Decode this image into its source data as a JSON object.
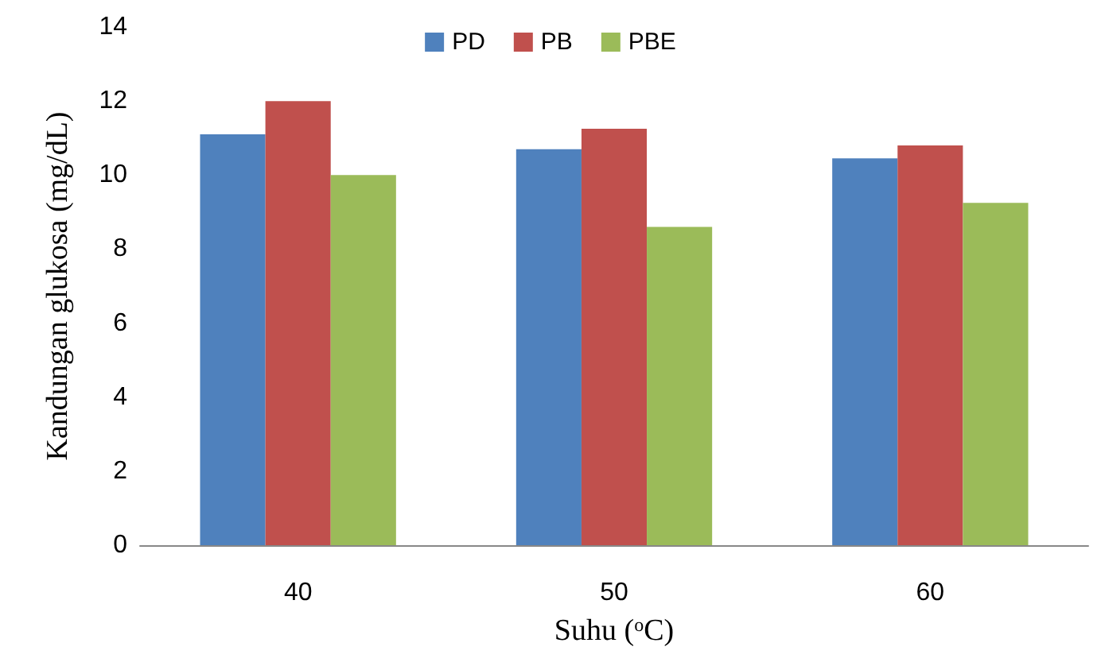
{
  "chart_data": {
    "type": "bar",
    "xlabel": "Suhu ($^{o}$C)",
    "ylabel": "Kandungan glukosa (mg/dL)",
    "categories": [
      "40",
      "50",
      "60"
    ],
    "series": [
      {
        "name": "PD",
        "color": "#4f81bd",
        "values": [
          11.1,
          10.7,
          10.45
        ]
      },
      {
        "name": "PB",
        "color": "#c0504d",
        "values": [
          12.0,
          11.25,
          10.8
        ]
      },
      {
        "name": "PBE",
        "color": "#9bbb59",
        "values": [
          10.0,
          8.6,
          9.25
        ]
      }
    ],
    "ylim": [
      0,
      14
    ],
    "yticks": [
      0,
      2,
      4,
      6,
      8,
      10,
      12,
      14
    ],
    "grid": false,
    "legend": "top"
  }
}
